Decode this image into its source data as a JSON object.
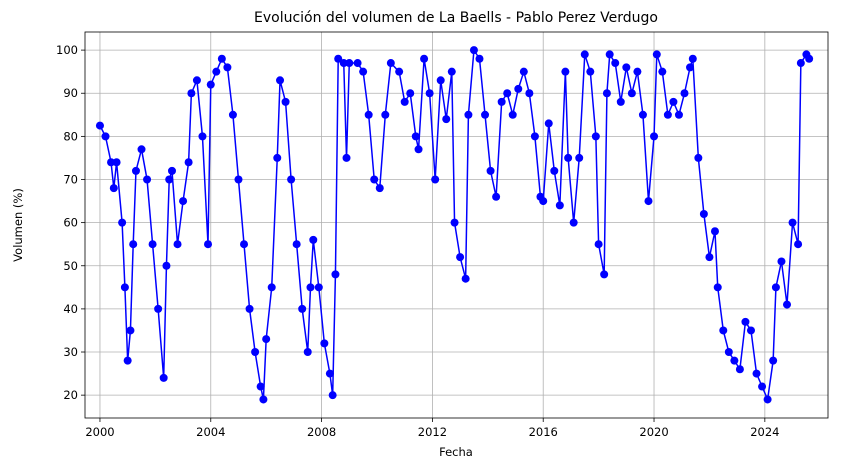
{
  "chart_data": {
    "type": "line",
    "title": "Evolución del volumen de La Baells - Pablo Perez Verdugo",
    "x_label": "Fecha",
    "y_label": "Volumen (%)",
    "color": "#0000ff",
    "grid": true,
    "markers": true,
    "xlim": [
      1999.46,
      2026.28
    ],
    "xticks": [
      2000,
      2004,
      2008,
      2012,
      2016,
      2020,
      2024
    ],
    "ylim": [
      14.7,
      104.2
    ],
    "yticks": [
      20,
      30,
      40,
      50,
      60,
      70,
      80,
      90,
      100
    ],
    "x": [
      2000.0,
      2000.2,
      2000.4,
      2000.5,
      2000.6,
      2000.8,
      2000.9,
      2001.0,
      2001.1,
      2001.2,
      2001.3,
      2001.5,
      2001.7,
      2001.9,
      2002.1,
      2002.3,
      2002.4,
      2002.5,
      2002.6,
      2002.8,
      2003.0,
      2003.2,
      2003.3,
      2003.5,
      2003.7,
      2003.9,
      2004.0,
      2004.2,
      2004.4,
      2004.6,
      2004.8,
      2005.0,
      2005.2,
      2005.4,
      2005.6,
      2005.8,
      2005.9,
      2006.0,
      2006.2,
      2006.4,
      2006.5,
      2006.7,
      2006.9,
      2007.1,
      2007.3,
      2007.5,
      2007.6,
      2007.7,
      2007.9,
      2008.1,
      2008.3,
      2008.4,
      2008.5,
      2008.6,
      2008.8,
      2008.9,
      2009.0,
      2009.3,
      2009.5,
      2009.7,
      2009.9,
      2010.1,
      2010.3,
      2010.5,
      2010.8,
      2011.0,
      2011.2,
      2011.4,
      2011.5,
      2011.7,
      2011.9,
      2012.1,
      2012.3,
      2012.5,
      2012.7,
      2012.8,
      2013.0,
      2013.2,
      2013.3,
      2013.5,
      2013.7,
      2013.9,
      2014.1,
      2014.3,
      2014.5,
      2014.7,
      2014.9,
      2015.1,
      2015.3,
      2015.5,
      2015.7,
      2015.9,
      2016.0,
      2016.2,
      2016.4,
      2016.6,
      2016.8,
      2016.9,
      2017.1,
      2017.3,
      2017.5,
      2017.7,
      2017.9,
      2018.0,
      2018.2,
      2018.3,
      2018.4,
      2018.6,
      2018.8,
      2019.0,
      2019.2,
      2019.4,
      2019.6,
      2019.8,
      2020.0,
      2020.1,
      2020.3,
      2020.5,
      2020.7,
      2020.9,
      2021.1,
      2021.3,
      2021.4,
      2021.6,
      2021.8,
      2022.0,
      2022.2,
      2022.3,
      2022.5,
      2022.7,
      2022.9,
      2023.1,
      2023.3,
      2023.5,
      2023.7,
      2023.9,
      2024.1,
      2024.3,
      2024.4,
      2024.6,
      2024.8,
      2025.0,
      2025.2,
      2025.3,
      2025.5,
      2025.6
    ],
    "values": [
      82.5,
      80,
      74,
      68,
      74,
      60,
      45,
      28,
      35,
      55,
      72,
      77,
      70,
      55,
      40,
      24,
      50,
      70,
      72,
      55,
      65,
      74,
      90,
      93,
      80,
      55,
      92,
      95,
      98,
      96,
      85,
      70,
      55,
      40,
      30,
      22,
      19,
      33,
      45,
      75,
      93,
      88,
      70,
      55,
      40,
      30,
      45,
      56,
      45,
      32,
      25,
      20,
      48,
      98,
      97,
      75,
      97,
      97,
      95,
      85,
      70,
      68,
      85,
      97,
      95,
      88,
      90,
      80,
      77,
      98,
      90,
      70,
      93,
      84,
      95,
      60,
      52,
      47,
      85,
      100,
      98,
      85,
      72,
      66,
      88,
      90,
      85,
      91,
      95,
      90,
      80,
      66,
      65,
      83,
      72,
      64,
      95,
      75,
      60,
      75,
      99,
      95,
      80,
      55,
      48,
      90,
      99,
      97,
      88,
      96,
      90,
      95,
      85,
      65,
      80,
      99,
      95,
      85,
      88,
      85,
      90,
      96,
      98,
      75,
      62,
      52,
      58,
      45,
      35,
      30,
      28,
      26,
      37,
      35,
      25,
      22,
      19,
      28,
      45,
      51,
      41,
      60,
      55,
      97,
      99,
      98
    ]
  }
}
